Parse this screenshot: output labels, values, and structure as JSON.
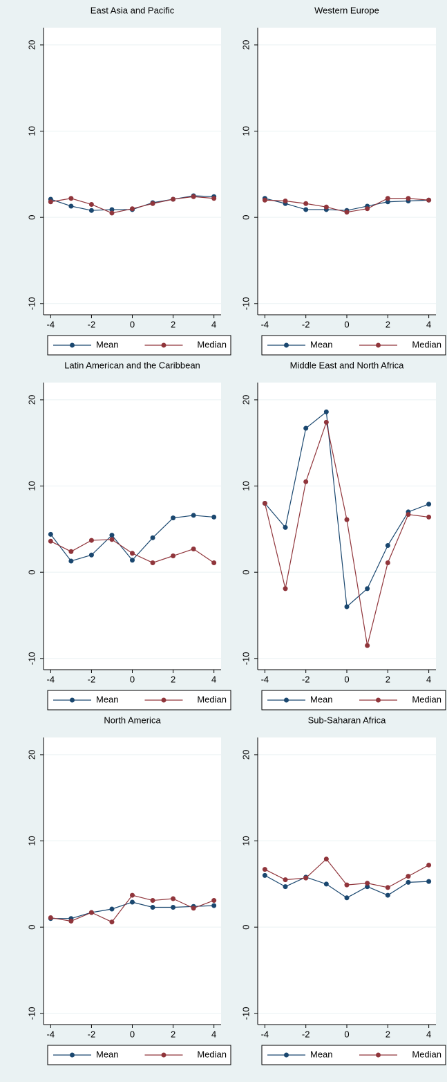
{
  "chart_data": [
    {
      "type": "line",
      "title": "East Asia and Pacific",
      "x": [
        -4,
        -3,
        -2,
        -1,
        0,
        1,
        2,
        3,
        4
      ],
      "series": [
        {
          "name": "Mean",
          "color": "#1a476f",
          "values": [
            2.1,
            1.3,
            0.8,
            0.9,
            0.9,
            1.7,
            2.1,
            2.5,
            2.4
          ]
        },
        {
          "name": "Median",
          "color": "#90353b",
          "values": [
            1.8,
            2.2,
            1.5,
            0.5,
            1.0,
            1.6,
            2.1,
            2.4,
            2.2
          ]
        }
      ],
      "xlim": [
        -4.35,
        4.35
      ],
      "ylim": [
        -11.3,
        22
      ],
      "xticks": [
        -4,
        -2,
        0,
        2,
        4
      ],
      "yticks": [
        -10,
        0,
        10,
        20
      ],
      "grid": true
    },
    {
      "type": "line",
      "title": "Western Europe",
      "x": [
        -4,
        -3,
        -2,
        -1,
        0,
        1,
        2,
        3,
        4
      ],
      "series": [
        {
          "name": "Mean",
          "color": "#1a476f",
          "values": [
            2.2,
            1.6,
            0.9,
            0.9,
            0.8,
            1.3,
            1.8,
            1.9,
            2.0
          ]
        },
        {
          "name": "Median",
          "color": "#90353b",
          "values": [
            2.0,
            1.9,
            1.6,
            1.2,
            0.6,
            1.0,
            2.2,
            2.2,
            2.0
          ]
        }
      ],
      "xlim": [
        -4.35,
        4.35
      ],
      "ylim": [
        -11.3,
        22
      ],
      "xticks": [
        -4,
        -2,
        0,
        2,
        4
      ],
      "yticks": [
        -10,
        0,
        10,
        20
      ],
      "grid": true
    },
    {
      "type": "line",
      "title": "Latin American and the Caribbean",
      "x": [
        -4,
        -3,
        -2,
        -1,
        0,
        1,
        2,
        3,
        4
      ],
      "series": [
        {
          "name": "Mean",
          "color": "#1a476f",
          "values": [
            4.4,
            1.3,
            2.0,
            4.3,
            1.4,
            4.0,
            6.3,
            6.6,
            6.4
          ]
        },
        {
          "name": "Median",
          "color": "#90353b",
          "values": [
            3.6,
            2.4,
            3.7,
            3.8,
            2.2,
            1.1,
            1.9,
            2.7,
            1.1
          ]
        }
      ],
      "xlim": [
        -4.35,
        4.35
      ],
      "ylim": [
        -11.3,
        22
      ],
      "xticks": [
        -4,
        -2,
        0,
        2,
        4
      ],
      "yticks": [
        -10,
        0,
        10,
        20
      ],
      "grid": true
    },
    {
      "type": "line",
      "title": "Middle East and North Africa",
      "x": [
        -4,
        -3,
        -2,
        -1,
        0,
        1,
        2,
        3,
        4
      ],
      "series": [
        {
          "name": "Mean",
          "color": "#1a476f",
          "values": [
            8.0,
            5.2,
            16.7,
            18.6,
            -4.0,
            -1.9,
            3.1,
            7.0,
            7.9
          ]
        },
        {
          "name": "Median",
          "color": "#90353b",
          "values": [
            8.0,
            -1.9,
            10.5,
            17.4,
            6.1,
            -8.5,
            1.1,
            6.7,
            6.4
          ]
        }
      ],
      "xlim": [
        -4.35,
        4.35
      ],
      "ylim": [
        -11.3,
        22
      ],
      "xticks": [
        -4,
        -2,
        0,
        2,
        4
      ],
      "yticks": [
        -10,
        0,
        10,
        20
      ],
      "grid": true
    },
    {
      "type": "line",
      "title": "North America",
      "x": [
        -4,
        -3,
        -2,
        -1,
        0,
        1,
        2,
        3,
        4
      ],
      "series": [
        {
          "name": "Mean",
          "color": "#1a476f",
          "values": [
            1.0,
            1.0,
            1.7,
            2.1,
            2.9,
            2.3,
            2.3,
            2.4,
            2.5
          ]
        },
        {
          "name": "Median",
          "color": "#90353b",
          "values": [
            1.1,
            0.7,
            1.7,
            0.6,
            3.7,
            3.1,
            3.3,
            2.2,
            3.1
          ]
        }
      ],
      "xlim": [
        -4.35,
        4.35
      ],
      "ylim": [
        -11.3,
        22
      ],
      "xticks": [
        -4,
        -2,
        0,
        2,
        4
      ],
      "yticks": [
        -10,
        0,
        10,
        20
      ],
      "grid": true
    },
    {
      "type": "line",
      "title": "Sub-Saharan Africa",
      "x": [
        -4,
        -3,
        -2,
        -1,
        0,
        1,
        2,
        3,
        4
      ],
      "series": [
        {
          "name": "Mean",
          "color": "#1a476f",
          "values": [
            6.0,
            4.7,
            5.8,
            5.0,
            3.4,
            4.7,
            3.7,
            5.2,
            5.3
          ]
        },
        {
          "name": "Median",
          "color": "#90353b",
          "values": [
            6.7,
            5.5,
            5.7,
            7.9,
            4.9,
            5.1,
            4.6,
            5.9,
            7.2
          ]
        }
      ],
      "xlim": [
        -4.35,
        4.35
      ],
      "ylim": [
        -11.3,
        22
      ],
      "xticks": [
        -4,
        -2,
        0,
        2,
        4
      ],
      "yticks": [
        -10,
        0,
        10,
        20
      ],
      "grid": true
    }
  ]
}
